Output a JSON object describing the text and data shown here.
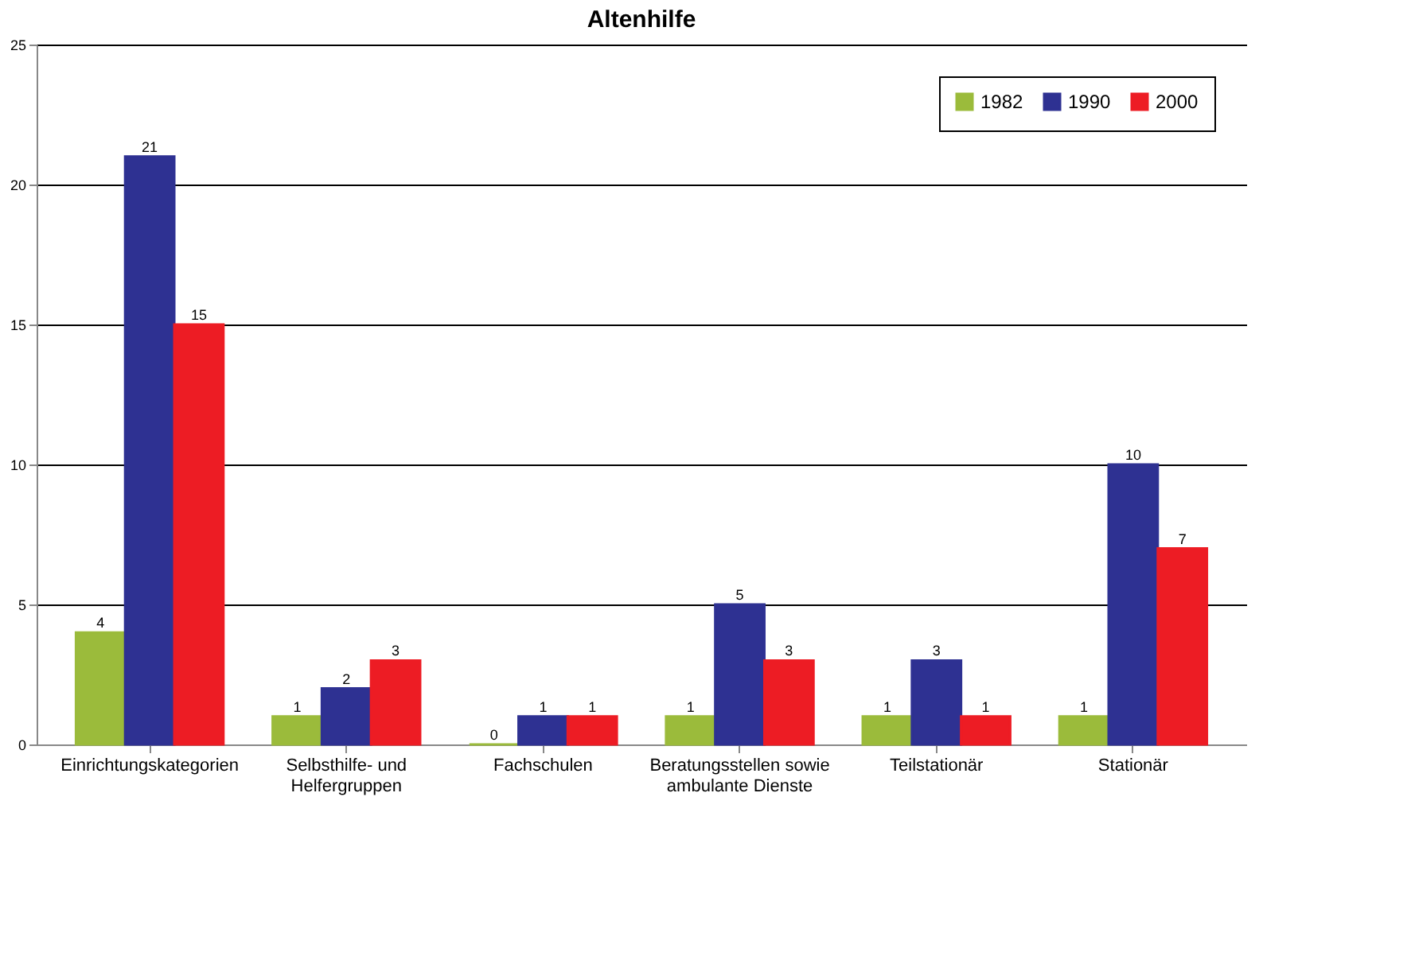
{
  "chart_data": {
    "type": "bar",
    "title": "Altenhilfe",
    "categories": [
      "Einrichtungskategorien",
      "Selbsthilfe- und Helfergruppen",
      "Fachschulen",
      "Beratungsstellen sowie ambulante Dienste",
      "Teilstationär",
      "Stationär"
    ],
    "series": [
      {
        "name": "1982",
        "color": "#9bbb3b",
        "values": [
          4,
          1,
          0,
          1,
          1,
          1
        ]
      },
      {
        "name": "1990",
        "color": "#2e3192",
        "values": [
          21,
          2,
          1,
          5,
          3,
          10
        ]
      },
      {
        "name": "2000",
        "color": "#ed1c24",
        "values": [
          15,
          3,
          1,
          3,
          1,
          7
        ]
      }
    ],
    "ylim": [
      0,
      25
    ],
    "yticks": [
      0,
      5,
      10,
      15,
      20,
      25
    ],
    "grid": "y",
    "legend": "top right",
    "data_labels": true
  }
}
